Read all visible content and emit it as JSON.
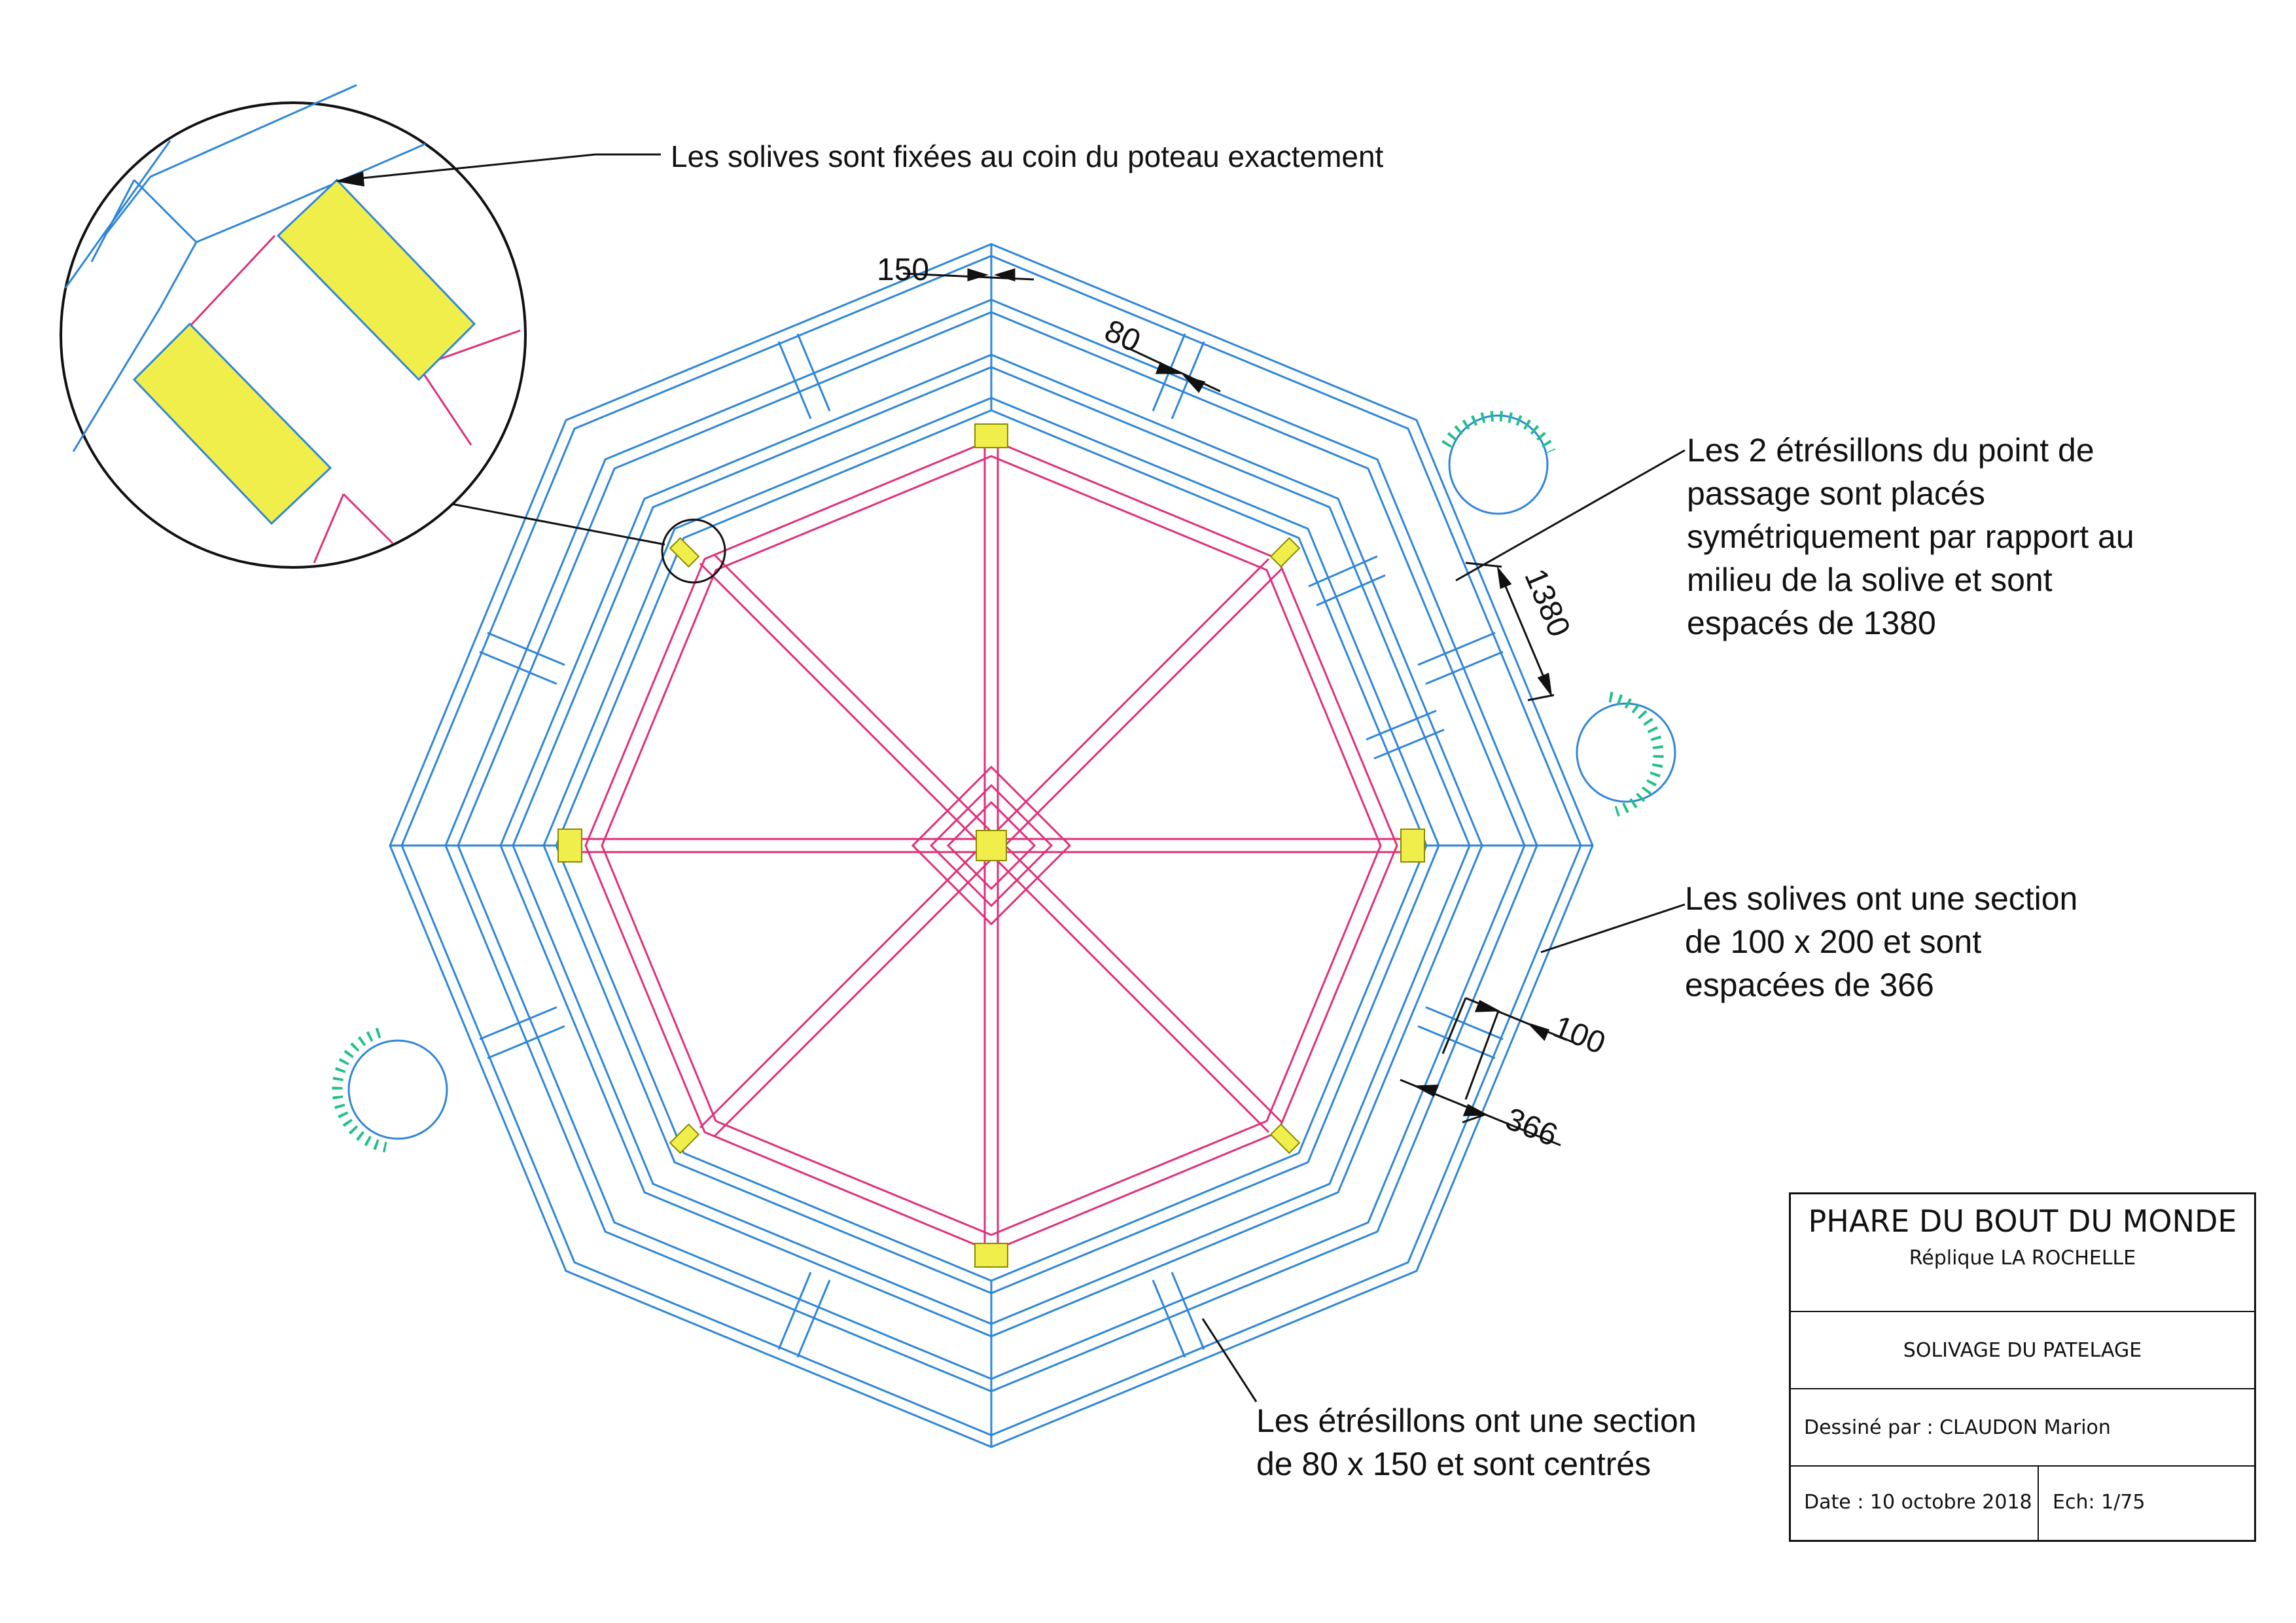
{
  "annotations": {
    "detail": "Les solives sont fixées au coin du poteau exactement",
    "struts_passage": [
      "Les 2 étrésillons du point de",
      "passage sont placés",
      "symétriquement par rapport au",
      "milieu de la solive et sont",
      "espacés de 1380"
    ],
    "joists": [
      "Les solives ont une section",
      "de 100 x 200 et sont",
      "espacées de 366"
    ],
    "struts": [
      "Les étrésillons ont une section",
      "de 80 x 150 et sont centrés"
    ]
  },
  "dimensions": {
    "d150": "150",
    "d80": "80",
    "d1380": "1380",
    "d100": "100",
    "d366": "366"
  },
  "title_block": {
    "project": "PHARE DU BOUT DU MONDE",
    "subtitle": "Réplique LA ROCHELLE",
    "drawing": "SOLIVAGE DU PATELAGE",
    "author": "Dessiné par : CLAUDON Marion",
    "date": "Date : 10 octobre 2018",
    "scale": "Ech: 1/75"
  },
  "colors": {
    "joist": "#2f86d8",
    "strut": "#e0307a",
    "post": "#f0ee4a",
    "stair": "#20c08a"
  }
}
